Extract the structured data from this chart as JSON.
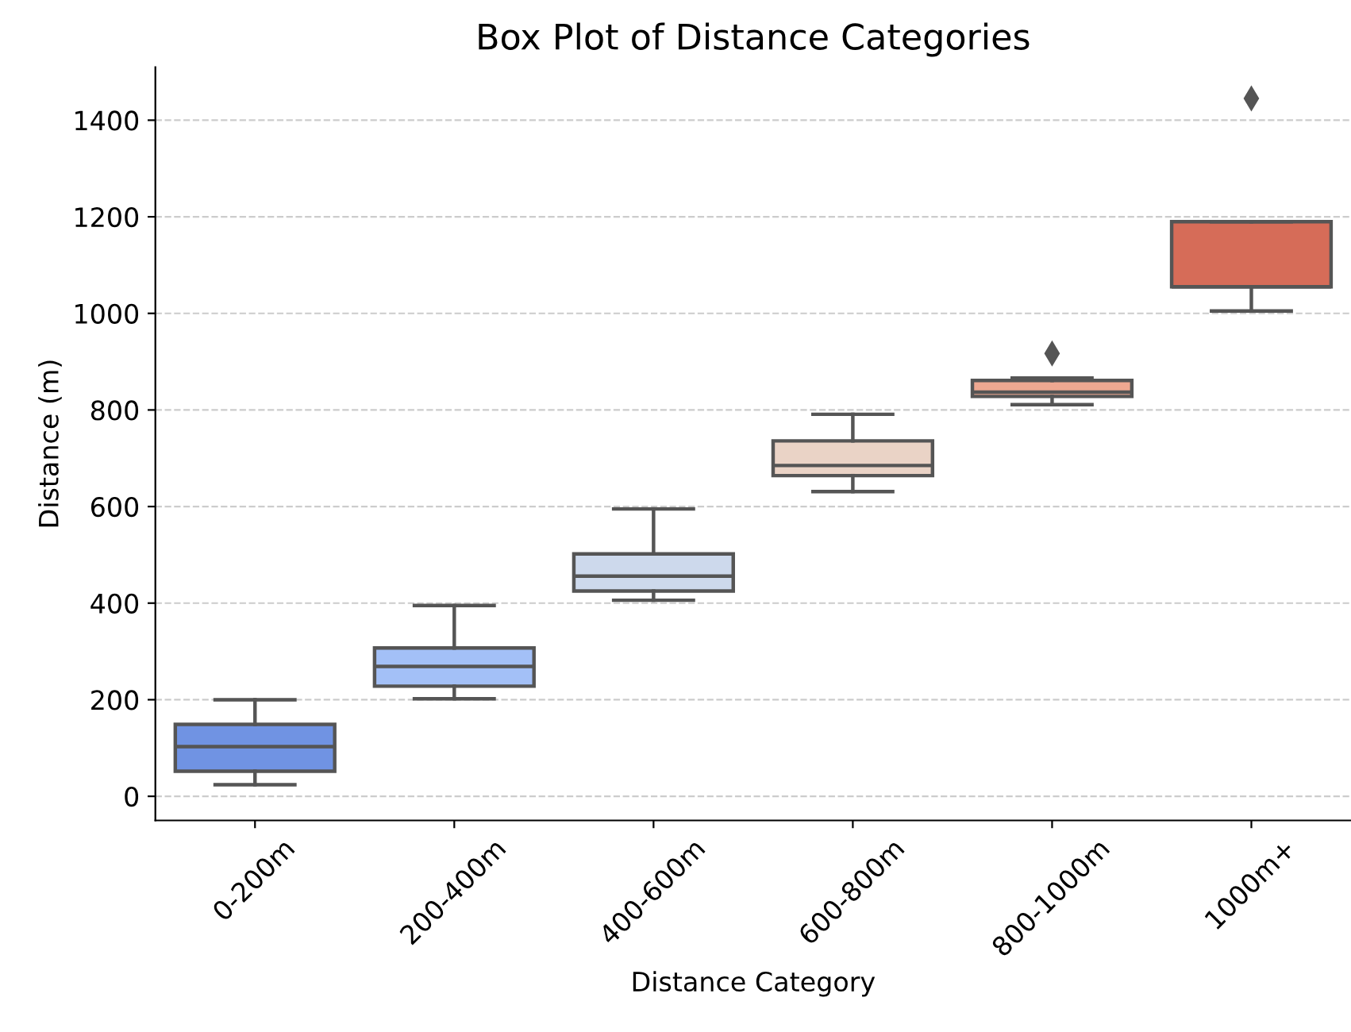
{
  "chart_data": {
    "type": "box",
    "title": "Box Plot of Distance Categories",
    "xlabel": "Distance Category",
    "ylabel": "Distance (m)",
    "categories": [
      "0-200m",
      "200-400m",
      "400-600m",
      "600-800m",
      "800-1000m",
      "1000m+"
    ],
    "colors": [
      "#7093e3",
      "#a3c0f7",
      "#cdd9ec",
      "#ead3c6",
      "#eea891",
      "#d66c58"
    ],
    "boxes": [
      {
        "low": 24,
        "q1": 52,
        "median": 103,
        "q3": 149,
        "high": 200
      },
      {
        "low": 202,
        "q1": 228,
        "median": 269,
        "q3": 307,
        "high": 395
      },
      {
        "low": 406,
        "q1": 425,
        "median": 456,
        "q3": 502,
        "high": 595
      },
      {
        "low": 631,
        "q1": 664,
        "median": 685,
        "q3": 736,
        "high": 791
      },
      {
        "low": 811,
        "q1": 828,
        "median": 837,
        "q3": 861,
        "high": 866,
        "outliers": [
          917
        ]
      },
      {
        "low": 1005,
        "q1": 1055,
        "median": 1055,
        "q3": 1190,
        "high": 1190,
        "outliers": [
          1445
        ]
      }
    ],
    "ylim": [
      -50,
      1510
    ],
    "yticks": [
      0,
      200,
      400,
      600,
      800,
      1000,
      1200,
      1400
    ],
    "grid": "y",
    "marker": "diamond"
  }
}
